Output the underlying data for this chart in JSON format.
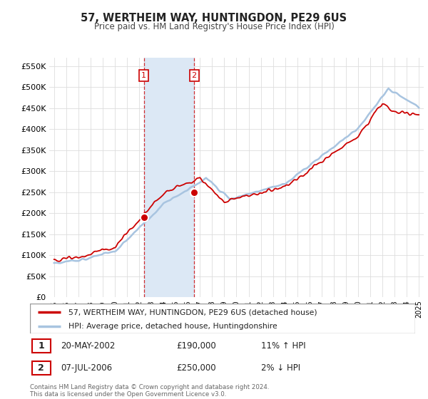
{
  "title": "57, WERTHEIM WAY, HUNTINGDON, PE29 6US",
  "subtitle": "Price paid vs. HM Land Registry's House Price Index (HPI)",
  "ylim": [
    0,
    570000
  ],
  "yticks": [
    0,
    50000,
    100000,
    150000,
    200000,
    250000,
    300000,
    350000,
    400000,
    450000,
    500000,
    550000
  ],
  "ytick_labels": [
    "£0",
    "£50K",
    "£100K",
    "£150K",
    "£200K",
    "£250K",
    "£300K",
    "£350K",
    "£400K",
    "£450K",
    "£500K",
    "£550K"
  ],
  "hpi_color": "#a8c4e0",
  "price_color": "#cc0000",
  "shade_color": "#dce8f5",
  "grid_color": "#dddddd",
  "background_color": "#ffffff",
  "legend_entry1": "57, WERTHEIM WAY, HUNTINGDON, PE29 6US (detached house)",
  "legend_entry2": "HPI: Average price, detached house, Huntingdonshire",
  "table_row1_num": "1",
  "table_row1_date": "20-MAY-2002",
  "table_row1_price": "£190,000",
  "table_row1_hpi": "11% ↑ HPI",
  "table_row2_num": "2",
  "table_row2_date": "07-JUL-2006",
  "table_row2_price": "£250,000",
  "table_row2_hpi": "2% ↓ HPI",
  "footnote": "Contains HM Land Registry data © Crown copyright and database right 2024.\nThis data is licensed under the Open Government Licence v3.0.",
  "transaction1_year": 2002.38,
  "transaction1_price": 190000,
  "transaction2_year": 2006.52,
  "transaction2_price": 250000
}
